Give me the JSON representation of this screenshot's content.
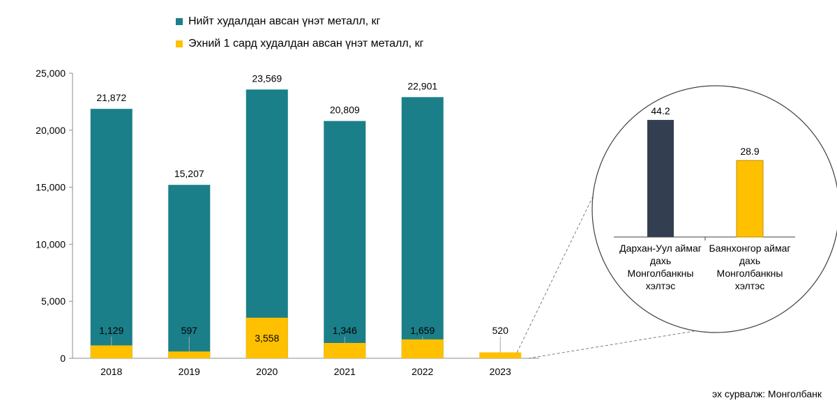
{
  "chart_data": [
    {
      "type": "bar",
      "stacked": false,
      "overlay": true,
      "categories": [
        "2018",
        "2019",
        "2020",
        "2021",
        "2022",
        "2023"
      ],
      "series": [
        {
          "name": "Нийт худалдан авсан үнэт металл, кг",
          "values": [
            21872,
            15207,
            23569,
            20809,
            22901,
            null
          ],
          "color": "#1a7f88",
          "labels": [
            "21,872",
            "15,207",
            "23,569",
            "20,809",
            "22,901",
            ""
          ]
        },
        {
          "name": "Эхний 1 сард худалдан авсан үнэт металл, кг",
          "values": [
            1129,
            597,
            3558,
            1346,
            1659,
            520
          ],
          "color": "#ffc000",
          "labels": [
            "1,129",
            "597",
            "3,558",
            "1,346",
            "1,659",
            "520"
          ]
        }
      ],
      "ylim": [
        0,
        25000
      ],
      "yticks": [
        0,
        5000,
        10000,
        15000,
        20000,
        25000
      ],
      "ytick_labels": [
        "0",
        "5,000",
        "10,000",
        "15,000",
        "20,000",
        "25,000"
      ],
      "grid": false,
      "legend": "top-left"
    },
    {
      "type": "bar",
      "categories": [
        "Дархан-Уул аймаг дахь Монголбанкны хэлтэс",
        "Баянхонгор аймаг дахь Монголбанкны хэлтэс"
      ],
      "category_lines": [
        [
          "Дархан-Уул аймаг",
          "дахь",
          "Монголбанкны",
          "хэлтэс"
        ],
        [
          "Баянхонгор аймаг",
          "дахь",
          "Монголбанкны",
          "хэлтэс"
        ]
      ],
      "values": [
        44.2,
        28.9
      ],
      "labels": [
        "44.2",
        "28.9"
      ],
      "colors": [
        "#333f50",
        "#ffc000"
      ],
      "ylim": [
        0,
        50
      ]
    }
  ],
  "source": "эх сурвалж: Монголбанк"
}
